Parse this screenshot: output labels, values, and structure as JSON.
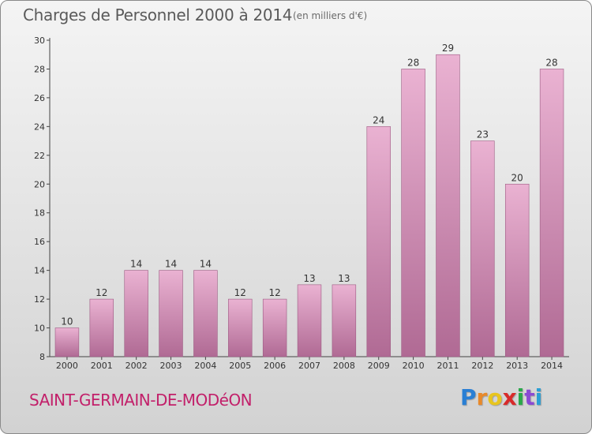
{
  "header": {
    "title": "Charges de Personnel 2000 à 2014",
    "unit": "(en milliers d'€)"
  },
  "footer": {
    "commune": "SAINT-GERMAIN-DE-MODéON",
    "logo_letters": [
      "P",
      "r",
      "o",
      "x",
      "i",
      "t",
      "i"
    ],
    "logo_colors": [
      "#2a7fd4",
      "#e8892a",
      "#e8c51e",
      "#d82a2a",
      "#2aa84a",
      "#8a4ad4",
      "#2a9fd4"
    ]
  },
  "colors": {
    "bar_top": "#eab2d2",
    "bar_bottom": "#b06a94",
    "axis": "#444444"
  },
  "chart_data": {
    "type": "bar",
    "title": "Charges de Personnel 2000 à 2014",
    "xlabel": "",
    "ylabel": "",
    "categories": [
      "2000",
      "2001",
      "2002",
      "2003",
      "2004",
      "2005",
      "2006",
      "2007",
      "2008",
      "2009",
      "2010",
      "2011",
      "2012",
      "2013",
      "2014"
    ],
    "values": [
      10,
      12,
      14,
      14,
      14,
      12,
      12,
      13,
      13,
      24,
      28,
      29,
      23,
      20,
      28
    ],
    "ylim": [
      8,
      30
    ],
    "yticks": [
      8,
      10,
      12,
      14,
      16,
      18,
      20,
      22,
      24,
      26,
      28,
      30
    ],
    "grid": false,
    "legend": "none"
  }
}
